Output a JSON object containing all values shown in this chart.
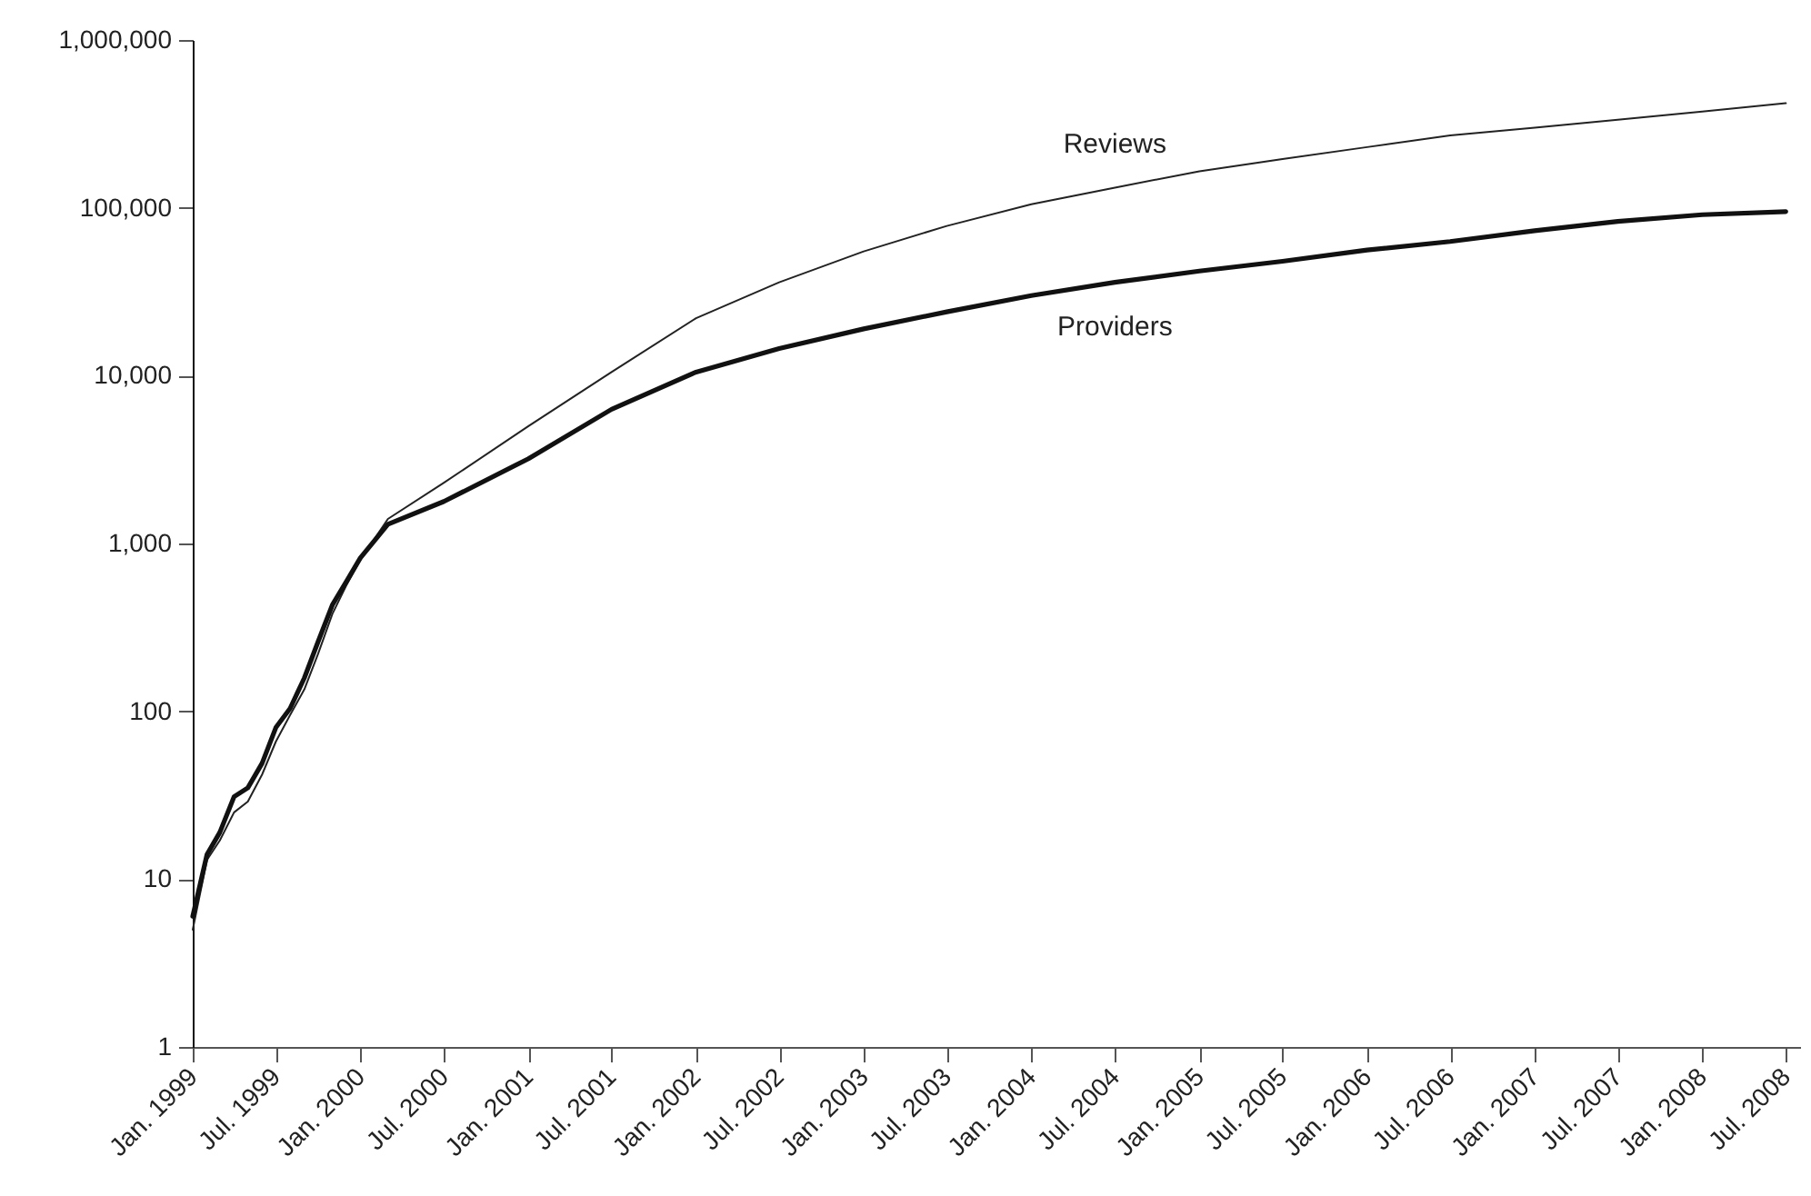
{
  "chart_data": {
    "type": "line",
    "log": "y",
    "marker": "none",
    "line_style": "solid",
    "x": [
      "1999-01",
      "1999-02",
      "1999-03",
      "1999-04",
      "1999-05",
      "1999-06",
      "1999-07",
      "1999-08",
      "1999-09",
      "1999-10",
      "1999-11",
      "1999-12",
      "2000-01",
      "2000-03",
      "2000-07",
      "2001-01",
      "2001-07",
      "2002-01",
      "2002-07",
      "2003-01",
      "2003-07",
      "2004-01",
      "2004-07",
      "2005-01",
      "2005-07",
      "2006-01",
      "2006-07",
      "2007-01",
      "2007-07",
      "2008-01",
      "2008-07"
    ],
    "series": [
      {
        "name": "Reviews",
        "color": "#222222",
        "values": [
          5,
          13,
          17,
          25,
          29,
          42,
          66,
          95,
          135,
          220,
          380,
          560,
          800,
          1400,
          2300,
          5000,
          10500,
          22000,
          36000,
          55000,
          78000,
          105000,
          132000,
          165000,
          195000,
          230000,
          270000,
          300000,
          335000,
          375000,
          420000
        ]
      },
      {
        "name": "Providers",
        "color": "#111111",
        "values": [
          6,
          14,
          19,
          31,
          35,
          49,
          80,
          104,
          158,
          260,
          430,
          590,
          820,
          1300,
          1780,
          3200,
          6300,
          10500,
          14500,
          19000,
          24000,
          30000,
          36000,
          42000,
          48000,
          56000,
          63000,
          73000,
          83000,
          91000,
          95000
        ]
      }
    ],
    "xlim": [
      "1999-01",
      "2008-08"
    ],
    "xticks": [
      {
        "value": "1999-01",
        "label": "Jan. 1999"
      },
      {
        "value": "1999-07",
        "label": "Jul. 1999"
      },
      {
        "value": "2000-01",
        "label": "Jan. 2000"
      },
      {
        "value": "2000-07",
        "label": "Jul. 2000"
      },
      {
        "value": "2001-01",
        "label": "Jan. 2001"
      },
      {
        "value": "2001-07",
        "label": "Jul. 2001"
      },
      {
        "value": "2002-01",
        "label": "Jan. 2002"
      },
      {
        "value": "2002-07",
        "label": "Jul. 2002"
      },
      {
        "value": "2003-01",
        "label": "Jan. 2003"
      },
      {
        "value": "2003-07",
        "label": "Jul. 2003"
      },
      {
        "value": "2004-01",
        "label": "Jan. 2004"
      },
      {
        "value": "2004-07",
        "label": "Jul. 2004"
      },
      {
        "value": "2005-01",
        "label": "Jan. 2005"
      },
      {
        "value": "2005-07",
        "label": "Jul. 2005"
      },
      {
        "value": "2006-01",
        "label": "Jan. 2006"
      },
      {
        "value": "2006-07",
        "label": "Jul. 2006"
      },
      {
        "value": "2007-01",
        "label": "Jan. 2007"
      },
      {
        "value": "2007-07",
        "label": "Jul. 2007"
      },
      {
        "value": "2008-01",
        "label": "Jan. 2008"
      },
      {
        "value": "2008-07",
        "label": "Jul. 2008"
      }
    ],
    "ylim": [
      1,
      1000000
    ],
    "yticks": [
      {
        "value": 1,
        "label": "1"
      },
      {
        "value": 10,
        "label": "10"
      },
      {
        "value": 100,
        "label": "100"
      },
      {
        "value": 1000,
        "label": "1,000"
      },
      {
        "value": 10000,
        "label": "10,000"
      },
      {
        "value": 100000,
        "label": "100,000"
      },
      {
        "value": 1000000,
        "label": "1,000,000"
      }
    ]
  }
}
